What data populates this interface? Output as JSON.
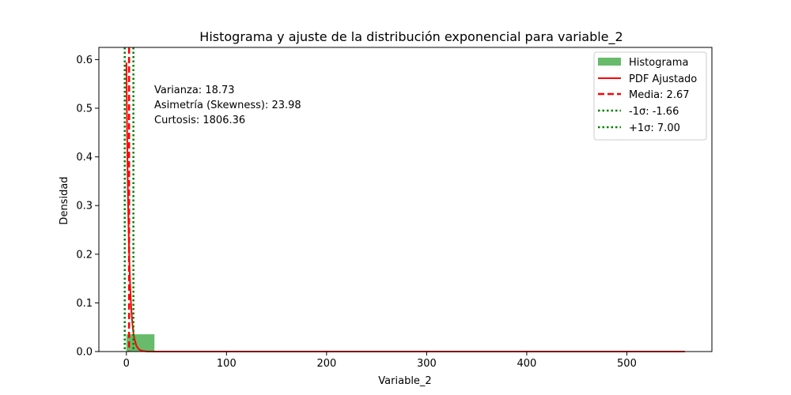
{
  "chart_data": {
    "type": "bar",
    "title": "Histograma y ajuste de la distribución exponencial para variable_2",
    "xlabel": "Variable_2",
    "ylabel": "Densidad",
    "xlim": [
      -27.5,
      585
    ],
    "ylim": [
      0,
      0.625
    ],
    "x_ticks": [
      0,
      100,
      200,
      300,
      400,
      500
    ],
    "x_tick_labels": [
      "0",
      "100",
      "200",
      "300",
      "400",
      "500"
    ],
    "y_ticks": [
      0.0,
      0.1,
      0.2,
      0.3,
      0.4,
      0.5,
      0.6
    ],
    "y_tick_labels": [
      "0.0",
      "0.1",
      "0.2",
      "0.3",
      "0.4",
      "0.5",
      "0.6"
    ],
    "grid": false,
    "legend_position": "top-right",
    "histogram": {
      "name": "Histograma",
      "color": "#4caf50",
      "bins": [
        {
          "x0": 0,
          "x1": 28,
          "density": 0.0355
        },
        {
          "x0": 28,
          "x1": 56,
          "density": 0.0003
        },
        {
          "x0": 56,
          "x1": 84,
          "density": 0.0
        },
        {
          "x0": 84,
          "x1": 112,
          "density": 0.0
        },
        {
          "x0": 112,
          "x1": 140,
          "density": 0.0
        },
        {
          "x0": 140,
          "x1": 168,
          "density": 0.0
        },
        {
          "x0": 168,
          "x1": 196,
          "density": 0.0
        },
        {
          "x0": 196,
          "x1": 224,
          "density": 0.0
        },
        {
          "x0": 224,
          "x1": 252,
          "density": 0.0
        },
        {
          "x0": 252,
          "x1": 280,
          "density": 0.0
        },
        {
          "x0": 280,
          "x1": 308,
          "density": 0.0
        },
        {
          "x0": 308,
          "x1": 336,
          "density": 0.0
        },
        {
          "x0": 336,
          "x1": 364,
          "density": 0.0
        },
        {
          "x0": 364,
          "x1": 392,
          "density": 0.0
        },
        {
          "x0": 392,
          "x1": 420,
          "density": 0.0
        },
        {
          "x0": 420,
          "x1": 448,
          "density": 0.0
        },
        {
          "x0": 448,
          "x1": 476,
          "density": 0.0
        },
        {
          "x0": 476,
          "x1": 504,
          "density": 0.0
        },
        {
          "x0": 504,
          "x1": 532,
          "density": 0.0
        },
        {
          "x0": 532,
          "x1": 560,
          "density": 0.0
        }
      ]
    },
    "pdf": {
      "name": "PDF Ajustado",
      "color": "#ff0000",
      "x": [
        0,
        0.25,
        0.5,
        0.75,
        1,
        1.25,
        1.5,
        1.75,
        2,
        2.5,
        3,
        3.5,
        4,
        4.5,
        5,
        6,
        7,
        8,
        10,
        12,
        15,
        20,
        30,
        60,
        100,
        200,
        300,
        400,
        500,
        558
      ],
      "y": [
        0.594,
        0.5386,
        0.4884,
        0.4428,
        0.4015,
        0.3641,
        0.3301,
        0.2993,
        0.2714,
        0.2231,
        0.1835,
        0.1508,
        0.124,
        0.102,
        0.0838,
        0.0567,
        0.0383,
        0.0259,
        0.0118,
        0.0054,
        0.0017,
        0.0002,
        0.0,
        0.0,
        0.0,
        0.0,
        0.0,
        0.0,
        0.0,
        0.0
      ]
    },
    "vlines": [
      {
        "name": "Media: 2.67",
        "x": 2.67,
        "color": "#ff0000",
        "style": "dashed"
      },
      {
        "name": "-1σ: -1.66",
        "x": -1.66,
        "color": "#008000",
        "style": "dotted"
      },
      {
        "name": "+1σ: 7.00",
        "x": 7.0,
        "color": "#008000",
        "style": "dotted"
      }
    ],
    "annotations": [
      "Varianza: 18.73",
      "Asimetría (Skewness): 23.98",
      "Curtosis: 1806.36"
    ]
  }
}
